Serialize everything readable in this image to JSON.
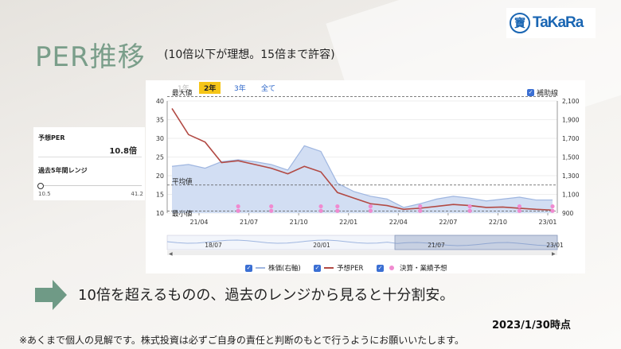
{
  "logo": {
    "text": "TaKaRa"
  },
  "title": "PER推移",
  "subtitle": "(10倍以下が理想。15倍まで許容)",
  "range_tabs": [
    {
      "label": "1年",
      "state": "dim"
    },
    {
      "label": "2年",
      "state": "active"
    },
    {
      "label": "3年",
      "state": "normal"
    },
    {
      "label": "全て",
      "state": "normal"
    }
  ],
  "aux_line_label": "補助線",
  "side_panel": {
    "forecast_per_label": "予想PER",
    "forecast_per_value": "10.8倍",
    "range_label": "過去5年間レンジ",
    "range_min": "10.5",
    "range_max": "41.2"
  },
  "legend": {
    "price": "株価(右軸)",
    "per": "予想PER",
    "events": "決算・業績予想"
  },
  "main_text": "10倍を超えるものの、過去のレンジから見ると十分割安。",
  "date": "2023/1/30時点",
  "footnote": "※あくまで個人の見解です。株式投資は必ずご自身の責任と判断のもとで行うようにお願いいたします。",
  "colors": {
    "title": "#7a9e8a",
    "per_line": "#b24a44",
    "price_area": "#c9d7f0",
    "price_line": "#9fb6e0",
    "event_dot": "#f08ad0",
    "arrow": "#6f9a86"
  },
  "chart_data": {
    "type": "line",
    "left_axis": {
      "ticks": [
        40,
        35,
        30,
        25,
        20,
        15,
        10
      ],
      "ylim": [
        10,
        40
      ]
    },
    "right_axis": {
      "ticks": [
        "2,100",
        "1,900",
        "1,700",
        "1,500",
        "1,300",
        "1,100",
        "900"
      ],
      "ylim": [
        900,
        2100
      ]
    },
    "x_ticks": [
      "21/04",
      "21/07",
      "21/10",
      "22/01",
      "22/04",
      "22/07",
      "22/10",
      "23/01"
    ],
    "navigator_ticks": [
      "18/07",
      "20/01",
      "21/07",
      "23/01"
    ],
    "reference_lines": [
      {
        "label": "最大値",
        "value": 41.2
      },
      {
        "label": "平均値",
        "value": 17.5
      },
      {
        "label": "最小値",
        "value": 10.5
      }
    ],
    "x": [
      "21/02",
      "21/03",
      "21/04",
      "21/05",
      "21/06",
      "21/07",
      "21/08",
      "21/09",
      "21/10",
      "21/11",
      "21/12",
      "22/01",
      "22/02",
      "22/03",
      "22/04",
      "22/05",
      "22/06",
      "22/07",
      "22/08",
      "22/09",
      "22/10",
      "22/11",
      "22/12",
      "23/01"
    ],
    "series": [
      {
        "name": "予想PER",
        "axis": "left",
        "values": [
          38,
          31,
          29,
          23.5,
          24,
          23,
          22,
          20.5,
          22.5,
          21,
          15.5,
          14,
          12.5,
          12,
          11,
          11.3,
          11.8,
          12.3,
          12,
          11.5,
          11.6,
          11.3,
          11,
          10.8
        ]
      },
      {
        "name": "株価(右軸)",
        "axis": "right",
        "values": [
          1400,
          1420,
          1380,
          1450,
          1470,
          1450,
          1420,
          1360,
          1620,
          1560,
          1220,
          1130,
          1080,
          1050,
          960,
          1000,
          1050,
          1080,
          1060,
          1030,
          1050,
          1070,
          1040,
          1040
        ]
      }
    ],
    "event_markers_x": [
      "21/06",
      "21/08",
      "21/11",
      "21/12",
      "22/02",
      "22/05",
      "22/08",
      "22/11",
      "23/01"
    ]
  }
}
